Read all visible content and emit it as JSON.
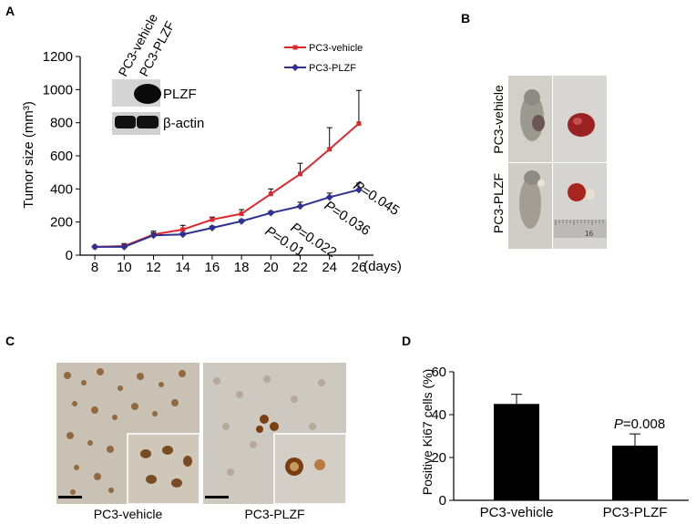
{
  "panels": {
    "a": "A",
    "b": "B",
    "c": "C",
    "d": "D"
  },
  "panel_a": {
    "blot": {
      "columns": [
        "PC3-vehicle",
        "PC3-PLZF"
      ],
      "rows": [
        "PLZF",
        "β-actin"
      ]
    },
    "pvalue_prefix": "P",
    "pvalues": [
      {
        "day": 20,
        "text": "=0.01"
      },
      {
        "day": 22,
        "text": "=0.022"
      },
      {
        "day": 24,
        "text": "=0.036"
      },
      {
        "day": 26,
        "text": "=0.045"
      }
    ]
  },
  "panel_b": {
    "labels": [
      "PC3-vehicle",
      "PC3-PLZF"
    ],
    "ruler_text": "16"
  },
  "panel_c": {
    "labels": [
      "PC3-vehicle",
      "PC3-PLZF"
    ]
  },
  "panel_d": {
    "pvalue_prefix": "P",
    "pvalue_text": "=0.008"
  },
  "chart_data": [
    {
      "type": "line",
      "xlabel": "(days)",
      "ylabel": "Tumor size (mm³)",
      "x": [
        8,
        10,
        12,
        14,
        16,
        18,
        20,
        22,
        24,
        26
      ],
      "xlim": [
        7,
        27
      ],
      "ylim": [
        0,
        1200
      ],
      "yticks": [
        0,
        200,
        400,
        600,
        800,
        1000,
        1200
      ],
      "legend_position": "top-right",
      "series": [
        {
          "name": "PC3-vehicle",
          "color": "#e0282c",
          "marker": "square",
          "values": [
            50,
            55,
            125,
            155,
            215,
            250,
            370,
            490,
            640,
            795
          ],
          "errors": [
            5,
            15,
            20,
            25,
            15,
            25,
            30,
            65,
            130,
            200
          ]
        },
        {
          "name": "PC3-PLZF",
          "color": "#2e3192",
          "marker": "diamond",
          "values": [
            50,
            50,
            120,
            125,
            165,
            205,
            255,
            295,
            350,
            395
          ],
          "errors": [
            5,
            10,
            15,
            10,
            10,
            10,
            10,
            25,
            25,
            40
          ]
        }
      ]
    },
    {
      "type": "bar",
      "ylabel": "Positive Ki67 cells (%)",
      "categories": [
        "PC3-vehicle",
        "PC3-PLZF"
      ],
      "values": [
        45,
        25.5
      ],
      "errors": [
        4.5,
        5.5
      ],
      "color": "#000000",
      "ylim": [
        0,
        60
      ],
      "yticks": [
        0,
        20,
        40,
        60
      ]
    }
  ]
}
